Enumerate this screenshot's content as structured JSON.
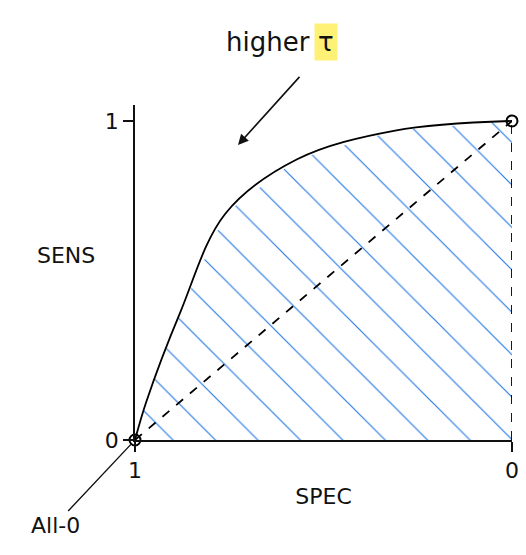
{
  "chart_data": {
    "type": "line",
    "xlabel": "SPEC",
    "ylabel": "SENS",
    "xlim": [
      1,
      0
    ],
    "ylim": [
      0,
      1.05
    ],
    "xticks": [
      1,
      0
    ],
    "yticks": [
      0,
      1
    ],
    "grid": false,
    "series": [
      {
        "type": "area",
        "color": "#2a7be4",
        "line_style": "hatched",
        "x": [
          1,
          0.97,
          0.88,
          0.76,
          0.57,
          0.31,
          0
        ],
        "values": [
          0,
          0.12,
          0.4,
          0.71,
          0.88,
          0.97,
          1
        ]
      },
      {
        "type": "line",
        "color": "#000000",
        "line_style": "solid",
        "x": [
          1,
          0.97,
          0.88,
          0.76,
          0.57,
          0.31,
          0
        ],
        "values": [
          0,
          0.12,
          0.4,
          0.71,
          0.88,
          0.97,
          1
        ]
      },
      {
        "type": "line",
        "color": "#000000",
        "line_style": "dashed",
        "x": [
          1,
          0
        ],
        "values": [
          0,
          1
        ]
      },
      {
        "type": "line",
        "color": "#000000",
        "line_style": "dashed",
        "x": [
          0,
          0
        ],
        "values": [
          0,
          1
        ]
      },
      {
        "type": "scatter",
        "color": "#000000",
        "marker": "circle-open",
        "x": [
          1,
          0
        ],
        "values": [
          0,
          1
        ]
      }
    ],
    "annotations": [
      {
        "text": "higher"
      },
      {
        "text": "τ",
        "color": "#fff176"
      },
      {
        "text": "All-0"
      }
    ]
  }
}
